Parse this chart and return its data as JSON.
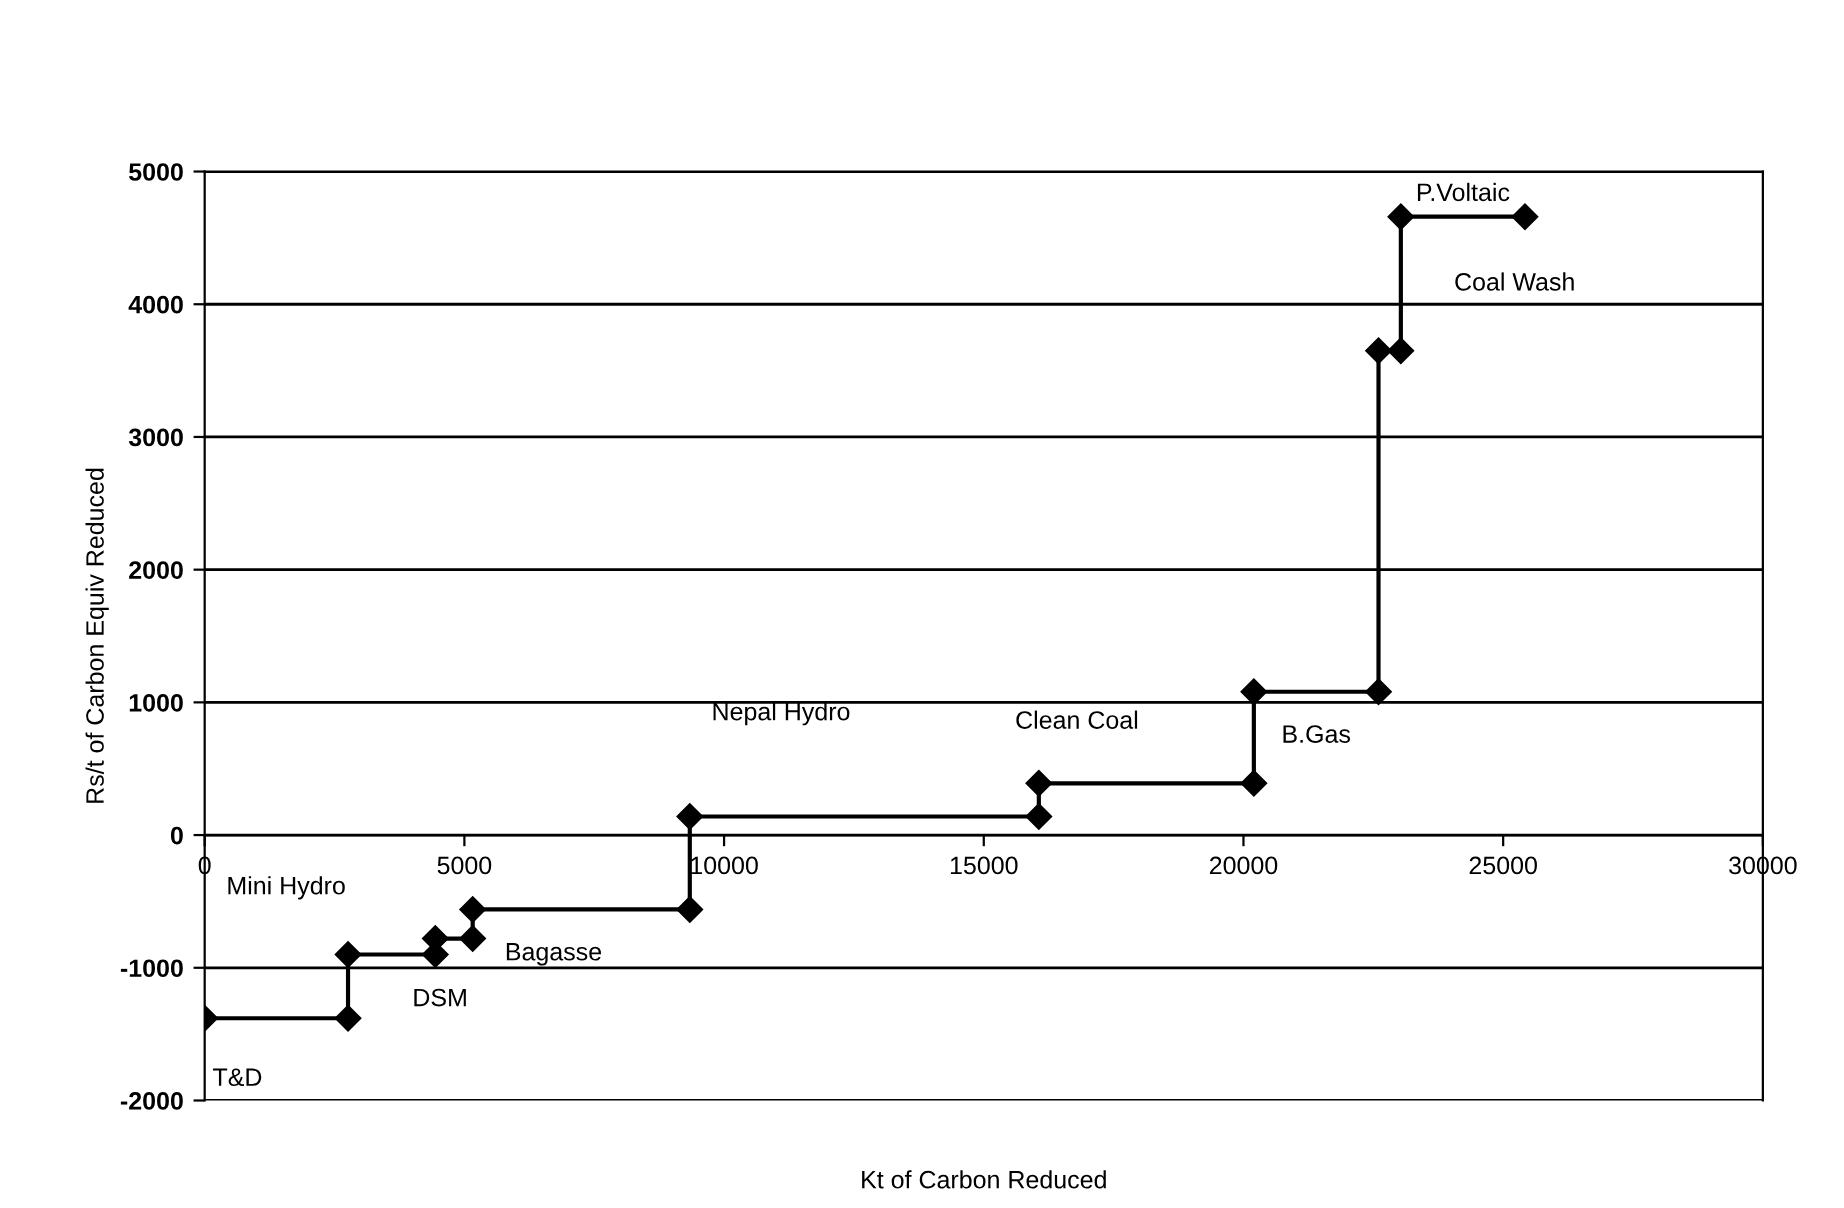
{
  "chart_data": {
    "type": "line",
    "xlabel": "Kt of Carbon Reduced",
    "ylabel": "Rs/t of Carbon Equiv Reduced",
    "series": [
      {
        "color": "#000000",
        "x": [
          0,
          2760,
          2760,
          4440,
          4440,
          5160,
          5160,
          9340,
          9340,
          16060,
          16060,
          20200,
          20200,
          22600,
          22600,
          23030,
          23030,
          25420
        ],
        "values": [
          -1380,
          -1380,
          -900,
          -900,
          -780,
          -780,
          -560,
          -560,
          140,
          140,
          390,
          390,
          1080,
          1080,
          3650,
          3650,
          4660,
          4660
        ]
      }
    ],
    "marker": "diamond",
    "line_style": "solid",
    "xlim": [
      0,
      30000
    ],
    "xticks": [
      0,
      5000,
      10000,
      15000,
      20000,
      25000,
      30000
    ],
    "ylim": [
      -2000,
      5000
    ],
    "yticks": [
      -2000,
      -1000,
      0,
      1000,
      2000,
      3000,
      4000,
      5000
    ],
    "grid": "y",
    "annotations": [
      "T&D",
      "Mini Hydro",
      "DSM",
      "Bagasse",
      "Nepal Hydro",
      "Clean Coal",
      "B.Gas",
      "Coal Wash",
      "P.Voltaic"
    ]
  }
}
